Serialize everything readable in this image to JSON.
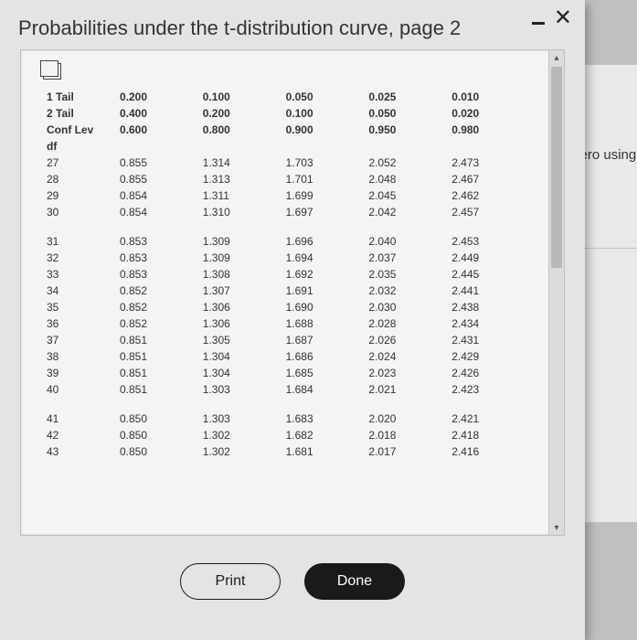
{
  "window": {
    "title": "Probabilities under the t-distribution curve, page 2",
    "background_color": "#e4e5e3",
    "side_text": "zero using"
  },
  "buttons": {
    "print": "Print",
    "done": "Done"
  },
  "table": {
    "type": "table",
    "font_size_pt": 9,
    "text_color": "#333333",
    "background_color": "#f4f4f2",
    "header_rows": [
      {
        "label": "1 Tail",
        "values": [
          "0.200",
          "0.100",
          "0.050",
          "0.025",
          "0.010"
        ]
      },
      {
        "label": "2 Tail",
        "values": [
          "0.400",
          "0.200",
          "0.100",
          "0.050",
          "0.020"
        ]
      },
      {
        "label": "Conf Lev",
        "values": [
          "0.600",
          "0.800",
          "0.900",
          "0.950",
          "0.980"
        ]
      }
    ],
    "df_label": "df",
    "groups": [
      [
        {
          "df": "27",
          "v": [
            "0.855",
            "1.314",
            "1.703",
            "2.052",
            "2.473"
          ]
        },
        {
          "df": "28",
          "v": [
            "0.855",
            "1.313",
            "1.701",
            "2.048",
            "2.467"
          ]
        },
        {
          "df": "29",
          "v": [
            "0.854",
            "1.311",
            "1.699",
            "2.045",
            "2.462"
          ]
        },
        {
          "df": "30",
          "v": [
            "0.854",
            "1.310",
            "1.697",
            "2.042",
            "2.457"
          ]
        }
      ],
      [
        {
          "df": "31",
          "v": [
            "0.853",
            "1.309",
            "1.696",
            "2.040",
            "2.453"
          ]
        },
        {
          "df": "32",
          "v": [
            "0.853",
            "1.309",
            "1.694",
            "2.037",
            "2.449"
          ]
        },
        {
          "df": "33",
          "v": [
            "0.853",
            "1.308",
            "1.692",
            "2.035",
            "2.445"
          ]
        },
        {
          "df": "34",
          "v": [
            "0.852",
            "1.307",
            "1.691",
            "2.032",
            "2.441"
          ]
        },
        {
          "df": "35",
          "v": [
            "0.852",
            "1.306",
            "1.690",
            "2.030",
            "2.438"
          ]
        },
        {
          "df": "36",
          "v": [
            "0.852",
            "1.306",
            "1.688",
            "2.028",
            "2.434"
          ]
        },
        {
          "df": "37",
          "v": [
            "0.851",
            "1.305",
            "1.687",
            "2.026",
            "2.431"
          ]
        },
        {
          "df": "38",
          "v": [
            "0.851",
            "1.304",
            "1.686",
            "2.024",
            "2.429"
          ]
        },
        {
          "df": "39",
          "v": [
            "0.851",
            "1.304",
            "1.685",
            "2.023",
            "2.426"
          ]
        },
        {
          "df": "40",
          "v": [
            "0.851",
            "1.303",
            "1.684",
            "2.021",
            "2.423"
          ]
        }
      ],
      [
        {
          "df": "41",
          "v": [
            "0.850",
            "1.303",
            "1.683",
            "2.020",
            "2.421"
          ]
        },
        {
          "df": "42",
          "v": [
            "0.850",
            "1.302",
            "1.682",
            "2.018",
            "2.418"
          ]
        },
        {
          "df": "43",
          "v": [
            "0.850",
            "1.302",
            "1.681",
            "2.017",
            "2.416"
          ]
        }
      ]
    ]
  }
}
